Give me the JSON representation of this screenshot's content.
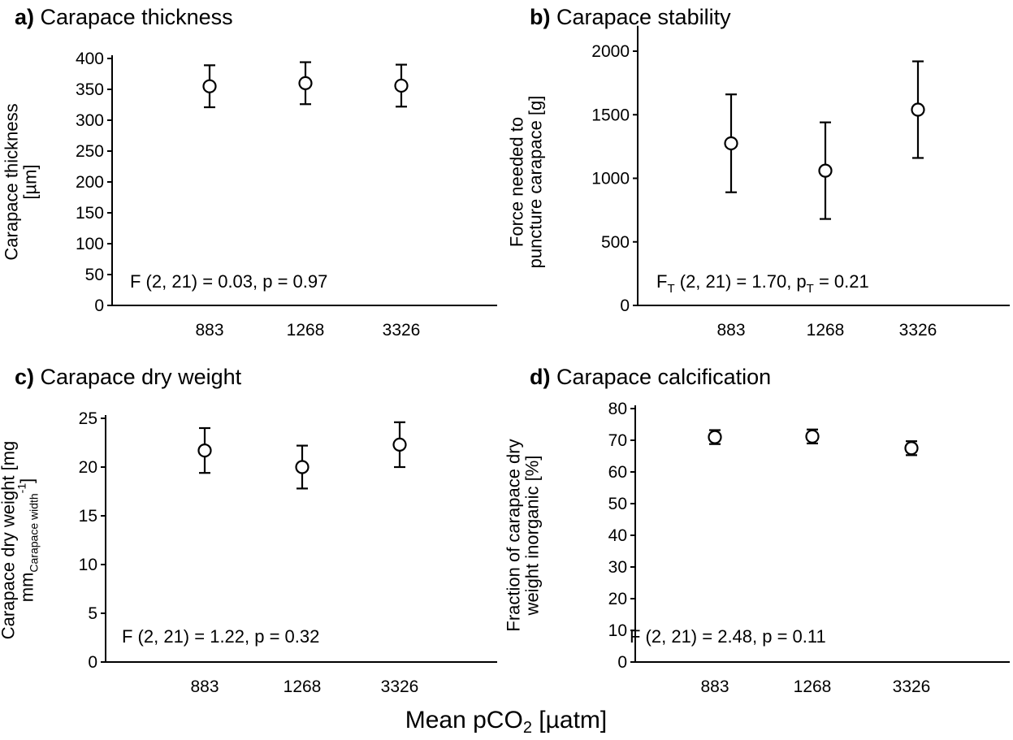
{
  "figure": {
    "xlabel_main": "Mean pCO",
    "xlabel_sub": "2",
    "xlabel_unit": " [µatm]"
  },
  "chart_data": [
    {
      "id": "a",
      "type": "scatter",
      "panel_letter": "a)",
      "title": "Carapace thickness",
      "ylabel_lines": [
        "Carapace thickness",
        "[µm]"
      ],
      "ylabel_sub": "",
      "ylabel_sup": "",
      "categories": [
        "883",
        "1268",
        "3326"
      ],
      "values": [
        355,
        360,
        356
      ],
      "errors": [
        34,
        34,
        34
      ],
      "ylim": [
        0,
        400
      ],
      "yticks": [
        0,
        50,
        100,
        150,
        200,
        250,
        300,
        350,
        400
      ],
      "stat": {
        "pre": "F (2, 21) = 0.03, p = 0.97",
        "subscripted": false
      }
    },
    {
      "id": "b",
      "type": "scatter",
      "panel_letter": "b)",
      "title": "Carapace stability",
      "ylabel_lines": [
        "Force needed to",
        "puncture carapace [g]"
      ],
      "ylabel_sub": "",
      "ylabel_sup": "",
      "categories": [
        "883",
        "1268",
        "3326"
      ],
      "values": [
        1275,
        1060,
        1540
      ],
      "errors": [
        385,
        380,
        380
      ],
      "ylim": [
        0,
        2000
      ],
      "ymax_axis": 2200,
      "yticks": [
        0,
        500,
        1000,
        1500,
        2000
      ],
      "stat": {
        "F": "F",
        "sub": "T",
        "mid": " (2, 21) = 1.70, p",
        "sub2": "T",
        "post": " = 0.21",
        "subscripted": true
      }
    },
    {
      "id": "c",
      "type": "scatter",
      "panel_letter": "c)",
      "title": "Carapace dry weight",
      "ylabel_lines": [
        "Carapace dry weight [mg",
        "mm"
      ],
      "ylabel_sub": "Carapace width",
      "ylabel_sup": "-1",
      "ylabel_end": "]",
      "categories": [
        "883",
        "1268",
        "3326"
      ],
      "values": [
        21.7,
        20.0,
        22.3
      ],
      "errors": [
        2.3,
        2.2,
        2.3
      ],
      "ylim": [
        0,
        25
      ],
      "yticks": [
        0,
        5,
        10,
        15,
        20,
        25
      ],
      "stat": {
        "pre": "F (2, 21) = 1.22, p = 0.32",
        "subscripted": false
      }
    },
    {
      "id": "d",
      "type": "scatter",
      "panel_letter": "d)",
      "title": "Carapace calcification",
      "ylabel_lines": [
        "Fraction of carapace dry",
        "weight inorganic [%]"
      ],
      "ylabel_sub": "",
      "ylabel_sup": "",
      "categories": [
        "883",
        "1268",
        "3326"
      ],
      "values": [
        71,
        71.2,
        67.5
      ],
      "errors": [
        2.2,
        2.2,
        2.2
      ],
      "ylim": [
        0,
        80
      ],
      "yticks": [
        0,
        10,
        20,
        30,
        40,
        50,
        60,
        70,
        80
      ],
      "stat": {
        "pre": "F (2, 21) = 2.48, p = 0.11",
        "subscripted": false
      }
    }
  ]
}
